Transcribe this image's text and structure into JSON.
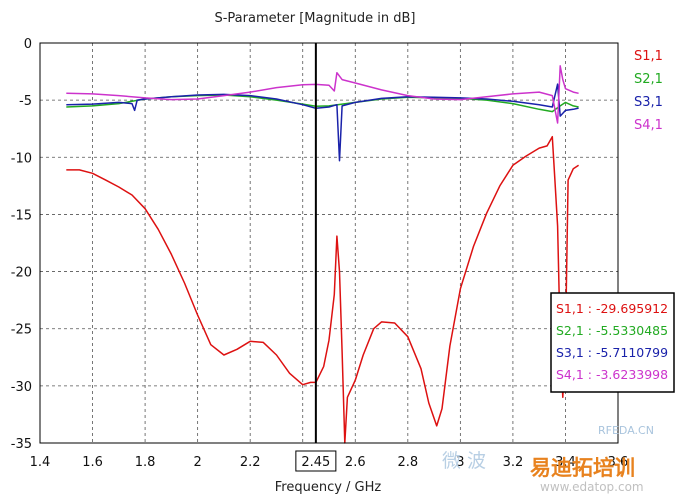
{
  "chart_data": {
    "type": "line",
    "title": "S-Parameter [Magnitude in dB]",
    "xlabel": "Frequency / GHz",
    "ylabel": "",
    "xlim": [
      1.4,
      3.6
    ],
    "ylim": [
      -35,
      0
    ],
    "xticks": [
      1.4,
      1.6,
      1.8,
      2,
      2.2,
      2.4,
      2.45,
      2.6,
      2.8,
      3,
      3.2,
      3.4,
      3.6
    ],
    "yticks": [
      0,
      -5,
      -10,
      -15,
      -20,
      -25,
      -30,
      -35
    ],
    "tick_labels_x": [
      "1.4",
      "1.6",
      "1.8",
      "2",
      "2.2",
      "",
      "2.45",
      "2.6",
      "2.8",
      "3",
      "3.2",
      "3.4",
      "3.6"
    ],
    "tick_labels_y": [
      "0",
      "-5",
      "-10",
      "-15",
      "-20",
      "-25",
      "-30",
      "-35"
    ],
    "grid": true,
    "legend_position": "right",
    "marker": {
      "x": 2.45,
      "label": "2.45"
    },
    "series": [
      {
        "name": "S1,1",
        "color": "#dd1111",
        "points": [
          [
            1.5,
            -11.1
          ],
          [
            1.55,
            -11.1
          ],
          [
            1.6,
            -11.4
          ],
          [
            1.65,
            -12.0
          ],
          [
            1.7,
            -12.6
          ],
          [
            1.75,
            -13.3
          ],
          [
            1.8,
            -14.5
          ],
          [
            1.85,
            -16.3
          ],
          [
            1.9,
            -18.5
          ],
          [
            1.95,
            -21.0
          ],
          [
            2.0,
            -23.8
          ],
          [
            2.05,
            -26.4
          ],
          [
            2.1,
            -27.3
          ],
          [
            2.15,
            -26.8
          ],
          [
            2.2,
            -26.1
          ],
          [
            2.25,
            -26.2
          ],
          [
            2.3,
            -27.3
          ],
          [
            2.35,
            -28.9
          ],
          [
            2.4,
            -29.9
          ],
          [
            2.43,
            -29.7
          ],
          [
            2.45,
            -29.7
          ],
          [
            2.48,
            -28.3
          ],
          [
            2.5,
            -26.0
          ],
          [
            2.52,
            -22.0
          ],
          [
            2.53,
            -16.9
          ],
          [
            2.54,
            -20.0
          ],
          [
            2.55,
            -27.0
          ],
          [
            2.56,
            -35.0
          ],
          [
            2.57,
            -31.0
          ],
          [
            2.6,
            -29.5
          ],
          [
            2.63,
            -27.3
          ],
          [
            2.67,
            -25.0
          ],
          [
            2.7,
            -24.4
          ],
          [
            2.75,
            -24.5
          ],
          [
            2.8,
            -25.7
          ],
          [
            2.85,
            -28.5
          ],
          [
            2.88,
            -31.5
          ],
          [
            2.91,
            -33.5
          ],
          [
            2.93,
            -32.0
          ],
          [
            2.96,
            -26.5
          ],
          [
            3.0,
            -21.5
          ],
          [
            3.05,
            -17.8
          ],
          [
            3.1,
            -14.9
          ],
          [
            3.15,
            -12.5
          ],
          [
            3.2,
            -10.7
          ],
          [
            3.25,
            -9.9
          ],
          [
            3.3,
            -9.2
          ],
          [
            3.33,
            -9.0
          ],
          [
            3.35,
            -8.2
          ],
          [
            3.36,
            -12.0
          ],
          [
            3.37,
            -16.0
          ],
          [
            3.38,
            -26.0
          ],
          [
            3.39,
            -31.0
          ],
          [
            3.4,
            -26.0
          ],
          [
            3.41,
            -12.0
          ],
          [
            3.43,
            -11.0
          ],
          [
            3.45,
            -10.7
          ]
        ]
      },
      {
        "name": "S2,1",
        "color": "#22aa22",
        "points": [
          [
            1.5,
            -5.6
          ],
          [
            1.6,
            -5.5
          ],
          [
            1.7,
            -5.3
          ],
          [
            1.8,
            -4.9
          ],
          [
            1.9,
            -4.7
          ],
          [
            2.0,
            -4.6
          ],
          [
            2.1,
            -4.55
          ],
          [
            2.2,
            -4.7
          ],
          [
            2.3,
            -5.0
          ],
          [
            2.4,
            -5.35
          ],
          [
            2.45,
            -5.53
          ],
          [
            2.5,
            -5.5
          ],
          [
            2.6,
            -5.2
          ],
          [
            2.7,
            -4.9
          ],
          [
            2.8,
            -4.75
          ],
          [
            2.9,
            -4.8
          ],
          [
            3.0,
            -4.85
          ],
          [
            3.1,
            -5.0
          ],
          [
            3.2,
            -5.3
          ],
          [
            3.3,
            -5.8
          ],
          [
            3.35,
            -6.0
          ],
          [
            3.38,
            -5.5
          ],
          [
            3.4,
            -5.2
          ],
          [
            3.43,
            -5.5
          ],
          [
            3.45,
            -5.6
          ]
        ]
      },
      {
        "name": "S3,1",
        "color": "#1a22aa",
        "points": [
          [
            1.5,
            -5.4
          ],
          [
            1.6,
            -5.35
          ],
          [
            1.7,
            -5.2
          ],
          [
            1.75,
            -5.3
          ],
          [
            1.76,
            -5.9
          ],
          [
            1.77,
            -5.0
          ],
          [
            1.8,
            -4.9
          ],
          [
            1.9,
            -4.7
          ],
          [
            2.0,
            -4.55
          ],
          [
            2.1,
            -4.5
          ],
          [
            2.2,
            -4.6
          ],
          [
            2.3,
            -4.9
          ],
          [
            2.4,
            -5.4
          ],
          [
            2.45,
            -5.71
          ],
          [
            2.5,
            -5.6
          ],
          [
            2.53,
            -5.4
          ],
          [
            2.54,
            -10.3
          ],
          [
            2.55,
            -5.5
          ],
          [
            2.6,
            -5.2
          ],
          [
            2.7,
            -4.85
          ],
          [
            2.8,
            -4.7
          ],
          [
            2.9,
            -4.75
          ],
          [
            3.0,
            -4.8
          ],
          [
            3.1,
            -4.9
          ],
          [
            3.2,
            -5.1
          ],
          [
            3.3,
            -5.4
          ],
          [
            3.35,
            -5.6
          ],
          [
            3.37,
            -3.6
          ],
          [
            3.38,
            -6.4
          ],
          [
            3.4,
            -5.9
          ],
          [
            3.43,
            -5.8
          ],
          [
            3.45,
            -5.7
          ]
        ]
      },
      {
        "name": "S4,1",
        "color": "#cc33cc",
        "points": [
          [
            1.5,
            -4.4
          ],
          [
            1.6,
            -4.45
          ],
          [
            1.7,
            -4.6
          ],
          [
            1.8,
            -4.8
          ],
          [
            1.9,
            -4.95
          ],
          [
            2.0,
            -4.9
          ],
          [
            2.1,
            -4.6
          ],
          [
            2.2,
            -4.3
          ],
          [
            2.3,
            -3.9
          ],
          [
            2.4,
            -3.65
          ],
          [
            2.45,
            -3.62
          ],
          [
            2.5,
            -3.7
          ],
          [
            2.52,
            -4.2
          ],
          [
            2.53,
            -2.6
          ],
          [
            2.55,
            -3.2
          ],
          [
            2.6,
            -3.5
          ],
          [
            2.7,
            -4.1
          ],
          [
            2.8,
            -4.6
          ],
          [
            2.9,
            -4.9
          ],
          [
            3.0,
            -4.95
          ],
          [
            3.1,
            -4.7
          ],
          [
            3.2,
            -4.45
          ],
          [
            3.3,
            -4.3
          ],
          [
            3.35,
            -4.6
          ],
          [
            3.37,
            -7.0
          ],
          [
            3.38,
            -2.0
          ],
          [
            3.39,
            -3.2
          ],
          [
            3.4,
            -4.0
          ],
          [
            3.43,
            -4.3
          ],
          [
            3.45,
            -4.4
          ]
        ]
      }
    ],
    "marker_readout": [
      {
        "label": "S1,1 : -29.695912",
        "color": "#dd1111"
      },
      {
        "label": "S2,1 : -5.5330485",
        "color": "#22aa22"
      },
      {
        "label": "S3,1 : -5.7110799",
        "color": "#1a22aa"
      },
      {
        "label": "S4,1 : -3.6233998",
        "color": "#cc33cc"
      }
    ]
  },
  "watermark": {
    "site_text": "RFEDA.CN",
    "brand_cn": "易迪拓培训",
    "url": "www.edatop.com",
    "cn_small": "微波"
  }
}
